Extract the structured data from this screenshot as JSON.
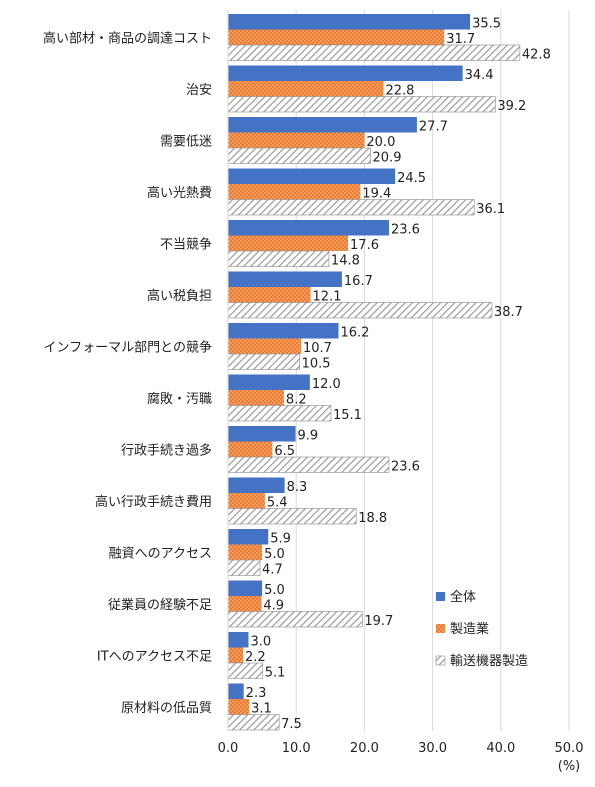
{
  "chart_data": {
    "type": "bar",
    "orientation": "horizontal",
    "categories": [
      "高い部材・商品の調達コスト",
      "治安",
      "需要低迷",
      "高い光熱費",
      "不当競争",
      "高い税負担",
      "インフォーマル部門との競争",
      "腐敗・汚職",
      "行政手続き過多",
      "高い行政手続き費用",
      "融資へのアクセス",
      "従業員の経験不足",
      "ITへのアクセス不足",
      "原材料の低品質"
    ],
    "series": [
      {
        "name": "全体",
        "color": "#4472C4",
        "pattern": "solid",
        "values": [
          35.5,
          34.4,
          27.7,
          24.5,
          23.6,
          16.7,
          16.2,
          12.0,
          9.9,
          8.3,
          5.9,
          5.0,
          3.0,
          2.3
        ]
      },
      {
        "name": "製造業",
        "color": "#ED7D31",
        "pattern": "dots",
        "values": [
          31.7,
          22.8,
          20.0,
          19.4,
          17.6,
          12.1,
          10.7,
          8.2,
          6.5,
          5.4,
          5.0,
          4.9,
          2.2,
          3.1
        ]
      },
      {
        "name": "輸送機器製造",
        "color": "#A6A6A6",
        "pattern": "diagonal-hatch",
        "values": [
          42.8,
          39.2,
          20.9,
          36.1,
          14.8,
          38.7,
          10.5,
          15.1,
          23.6,
          18.8,
          4.7,
          19.7,
          5.1,
          7.5
        ]
      }
    ],
    "x_ticks": [
      "0.0",
      "10.0",
      "20.0",
      "30.0",
      "40.0",
      "50.0"
    ],
    "xlim": [
      0,
      50
    ],
    "xlabel": "",
    "unit_label": "(%)",
    "value_format_decimals": 1,
    "grid": "vertical",
    "legend_position": "right-bottom",
    "axis_color": "#D9D9D9"
  }
}
